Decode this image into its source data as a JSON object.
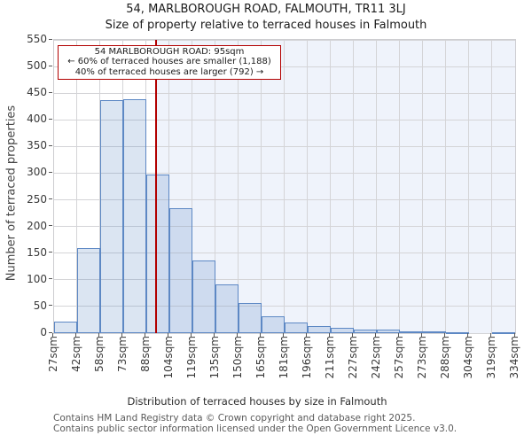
{
  "annotation": {
    "line1": "54 MARLBOROUGH ROAD: 95sqm",
    "line2": "← 60% of terraced houses are smaller (1,188)",
    "line3": "40% of terraced houses are larger (792) →"
  },
  "footer": {
    "line1": "Contains HM Land Registry data © Crown copyright and database right 2025.",
    "line2": "Contains public sector information licensed under the Open Government Licence v3.0."
  },
  "chart_data": {
    "type": "bar",
    "title": "54, MARLBOROUGH ROAD, FALMOUTH, TR11 3LJ",
    "subtitle": "Size of property relative to terraced houses in Falmouth",
    "xlabel": "Distribution of terraced houses by size in Falmouth",
    "ylabel": "Number of terraced properties",
    "ylim": [
      0,
      550
    ],
    "y_ticks": [
      0,
      50,
      100,
      150,
      200,
      250,
      300,
      350,
      400,
      450,
      500,
      550
    ],
    "bin_edges_sqm": [
      27,
      42,
      58,
      73,
      88,
      104,
      119,
      135,
      150,
      165,
      181,
      196,
      211,
      227,
      242,
      257,
      273,
      288,
      304,
      319,
      334
    ],
    "x_tick_labels": [
      "27sqm",
      "42sqm",
      "58sqm",
      "73sqm",
      "88sqm",
      "104sqm",
      "119sqm",
      "135sqm",
      "150sqm",
      "165sqm",
      "181sqm",
      "196sqm",
      "211sqm",
      "227sqm",
      "242sqm",
      "257sqm",
      "273sqm",
      "288sqm",
      "304sqm",
      "319sqm",
      "334sqm"
    ],
    "values": [
      22,
      160,
      437,
      439,
      297,
      235,
      137,
      92,
      56,
      32,
      20,
      13,
      10,
      7,
      6,
      4,
      3,
      2,
      0,
      2
    ],
    "marker_sqm": 95,
    "marker_property": "54 MARLBOROUGH ROAD",
    "smaller_pct": 60,
    "smaller_count": 1188,
    "larger_pct": 40,
    "larger_count": 792,
    "grid": true,
    "legend_position": "none",
    "colors": {
      "bar_fill_rgba": "rgba(93,136,196,0.22)",
      "bar_edge": "#5d88c4",
      "marker_line": "#b20000",
      "annotation_border": "#b20000",
      "shaded_region": "#eff3fb",
      "gridline": "#d4d4d7",
      "axis_text": "#3a3a3a",
      "footer_text": "#595959"
    }
  }
}
